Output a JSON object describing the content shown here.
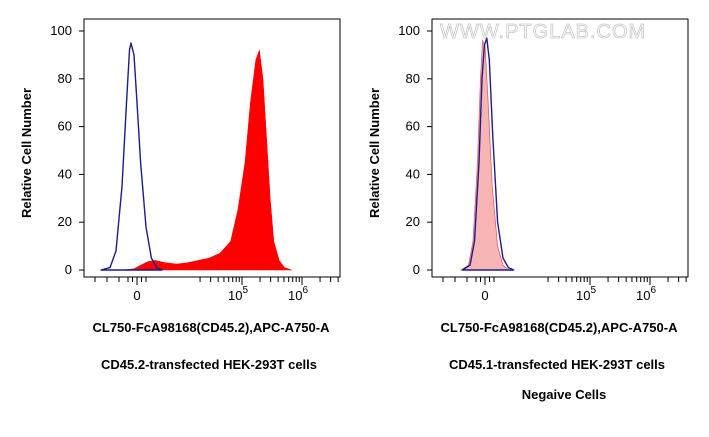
{
  "watermark": "WWW.PTGLAB.COM",
  "colors": {
    "filled": "#ff0000",
    "filled_light": "#f7b4b4",
    "outline": "#1c1c8c",
    "axis": "#000000"
  },
  "chart_data": [
    {
      "type": "area",
      "xlabel": "CL750-FcA98168(CD45.2),APC-A750-A",
      "ylabel": "Relative Cell Number",
      "caption": "CD45.2-transfected HEK-293T cells",
      "note": "",
      "x_scale": "biexponential",
      "ylim": [
        0,
        100
      ],
      "y_ticks": [
        "0",
        "20",
        "40",
        "60",
        "80",
        "100"
      ],
      "x_tick_labels": [
        {
          "base": "0",
          "exp": ""
        },
        {
          "base": "10",
          "exp": "5"
        },
        {
          "base": "10",
          "exp": "6"
        }
      ],
      "series": [
        {
          "style": "filled",
          "points": [
            [
              -0.5,
              0
            ],
            [
              -0.1,
              0.5
            ],
            [
              0.1,
              2
            ],
            [
              0.3,
              3.5
            ],
            [
              0.5,
              4
            ],
            [
              0.8,
              3
            ],
            [
              1.1,
              2.5
            ],
            [
              1.4,
              3
            ],
            [
              1.7,
              4
            ],
            [
              2.0,
              5
            ],
            [
              2.3,
              7
            ],
            [
              2.6,
              12
            ],
            [
              2.8,
              25
            ],
            [
              3.0,
              45
            ],
            [
              3.15,
              70
            ],
            [
              3.3,
              88
            ],
            [
              3.4,
              92
            ],
            [
              3.5,
              80
            ],
            [
              3.6,
              55
            ],
            [
              3.7,
              30
            ],
            [
              3.8,
              12
            ],
            [
              3.95,
              4
            ],
            [
              4.1,
              1
            ],
            [
              4.3,
              0
            ]
          ]
        },
        {
          "style": "outline",
          "points": [
            [
              -1.2,
              0
            ],
            [
              -0.9,
              1
            ],
            [
              -0.7,
              8
            ],
            [
              -0.5,
              35
            ],
            [
              -0.35,
              70
            ],
            [
              -0.25,
              92
            ],
            [
              -0.2,
              95
            ],
            [
              -0.1,
              90
            ],
            [
              0.0,
              70
            ],
            [
              0.1,
              45
            ],
            [
              0.25,
              18
            ],
            [
              0.4,
              5
            ],
            [
              0.55,
              1
            ],
            [
              0.7,
              0
            ]
          ]
        }
      ]
    },
    {
      "type": "area",
      "xlabel": "CL750-FcA98168(CD45.2),APC-A750-A",
      "ylabel": "Relative Cell Number",
      "caption": "CD45.1-transfected HEK-293T cells",
      "note": "Negaive Cells",
      "x_scale": "biexponential",
      "ylim": [
        0,
        100
      ],
      "y_ticks": [
        "0",
        "20",
        "40",
        "60",
        "80",
        "100"
      ],
      "x_tick_labels": [
        {
          "base": "0",
          "exp": ""
        },
        {
          "base": "10",
          "exp": "5"
        },
        {
          "base": "10",
          "exp": "6"
        }
      ],
      "series": [
        {
          "style": "filled_light",
          "points": [
            [
              -0.8,
              0
            ],
            [
              -0.55,
              2
            ],
            [
              -0.4,
              12
            ],
            [
              -0.25,
              45
            ],
            [
              -0.15,
              80
            ],
            [
              -0.08,
              96
            ],
            [
              0.0,
              94
            ],
            [
              0.08,
              72
            ],
            [
              0.2,
              35
            ],
            [
              0.35,
              10
            ],
            [
              0.5,
              2
            ],
            [
              0.65,
              0
            ]
          ]
        },
        {
          "style": "outline",
          "points": [
            [
              -0.75,
              0
            ],
            [
              -0.5,
              2
            ],
            [
              -0.35,
              12
            ],
            [
              -0.2,
              45
            ],
            [
              -0.1,
              80
            ],
            [
              -0.02,
              94
            ],
            [
              0.05,
              97
            ],
            [
              0.12,
              88
            ],
            [
              0.22,
              55
            ],
            [
              0.35,
              20
            ],
            [
              0.5,
              5
            ],
            [
              0.65,
              1
            ],
            [
              0.8,
              0
            ]
          ]
        }
      ]
    }
  ]
}
